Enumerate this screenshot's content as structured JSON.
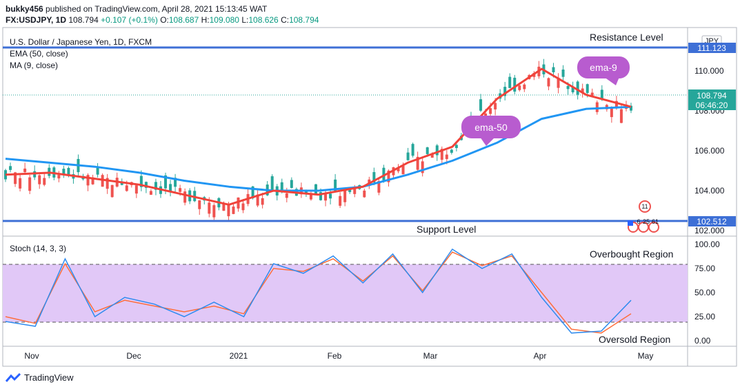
{
  "header": {
    "user": "bukky456",
    "published_text": "published on TradingView.com, April 28, 2021 15:13:45 WAT",
    "symbol": "FX:USDJPY, 1D",
    "last": "108.794",
    "change": "+0.107 (+0.1%)",
    "open_label": "O:",
    "open": "108.687",
    "high_label": "H:",
    "high": "109.080",
    "low_label": "L:",
    "low": "108.626",
    "close_label": "C:",
    "close": "108.794"
  },
  "legend": {
    "title": "U.S. Dollar / Japanese Yen, 1D, FXCM",
    "ema": "EMA (50, close)",
    "ma": "MA (9, close)"
  },
  "annotations": {
    "resistance": "Resistance Level",
    "support": "Support Level",
    "ema9": "ema-9",
    "ema50": "ema-50",
    "overbought": "Overbought Region",
    "oversold": "Oversold Region",
    "events": [
      "11",
      "6",
      "25",
      "61"
    ]
  },
  "price_axis": {
    "currency": "JPY",
    "resistance_value": "111.123",
    "support_value": "102.512",
    "last_value": "108.794",
    "countdown": "06:46:20"
  },
  "colors": {
    "up": "#26a69a",
    "down": "#ef5350",
    "ema50": "#2196f3",
    "ma9": "#f0433a",
    "level": "#3d6fd6",
    "bubble": "#b85ccf",
    "stoch_k": "#2e8bef",
    "stoch_d": "#ff6d3a",
    "band": "#e1c8f7"
  },
  "stoch": {
    "title": "Stoch (14, 3, 3)",
    "ylim": [
      0,
      100
    ],
    "ticks": [
      "100.00",
      "75.00",
      "50.00",
      "25.00",
      "0.00"
    ],
    "overbought": 80,
    "oversold": 20
  },
  "footer": {
    "brand": "TradingView"
  },
  "chart_data": {
    "type": "line",
    "title": "U.S. Dollar / Japanese Yen, 1D, FXCM",
    "x_ticks": [
      "Nov",
      "Dec",
      "2021",
      "Feb",
      "Mar",
      "Apr",
      "May"
    ],
    "y_ticks": [
      "110.000",
      "108.000",
      "106.000",
      "104.000",
      "102.000"
    ],
    "ylim": [
      101.8,
      111.9
    ],
    "resistance": 111.123,
    "support": 102.512,
    "series": [
      {
        "name": "EMA (50, close)",
        "values": [
          105.6,
          105.4,
          105.2,
          104.9,
          104.5,
          104.2,
          104.0,
          104.0,
          104.2,
          104.8,
          105.5,
          106.4,
          107.6,
          108.1,
          108.2
        ]
      },
      {
        "name": "MA (9, close)",
        "values": [
          104.8,
          104.9,
          104.6,
          104.3,
          103.8,
          103.3,
          104.0,
          103.8,
          104.2,
          105.4,
          106.2,
          108.6,
          110.1,
          108.8,
          108.2
        ]
      },
      {
        "name": "Stoch %K",
        "values": [
          20,
          15,
          85,
          25,
          45,
          38,
          25,
          40,
          25,
          80,
          70,
          88,
          60,
          90,
          50,
          95,
          75,
          90,
          45,
          8,
          10,
          42
        ]
      },
      {
        "name": "Stoch %D",
        "values": [
          25,
          18,
          80,
          30,
          42,
          36,
          30,
          36,
          28,
          75,
          72,
          85,
          62,
          88,
          52,
          92,
          78,
          88,
          50,
          12,
          8,
          28
        ]
      }
    ]
  }
}
